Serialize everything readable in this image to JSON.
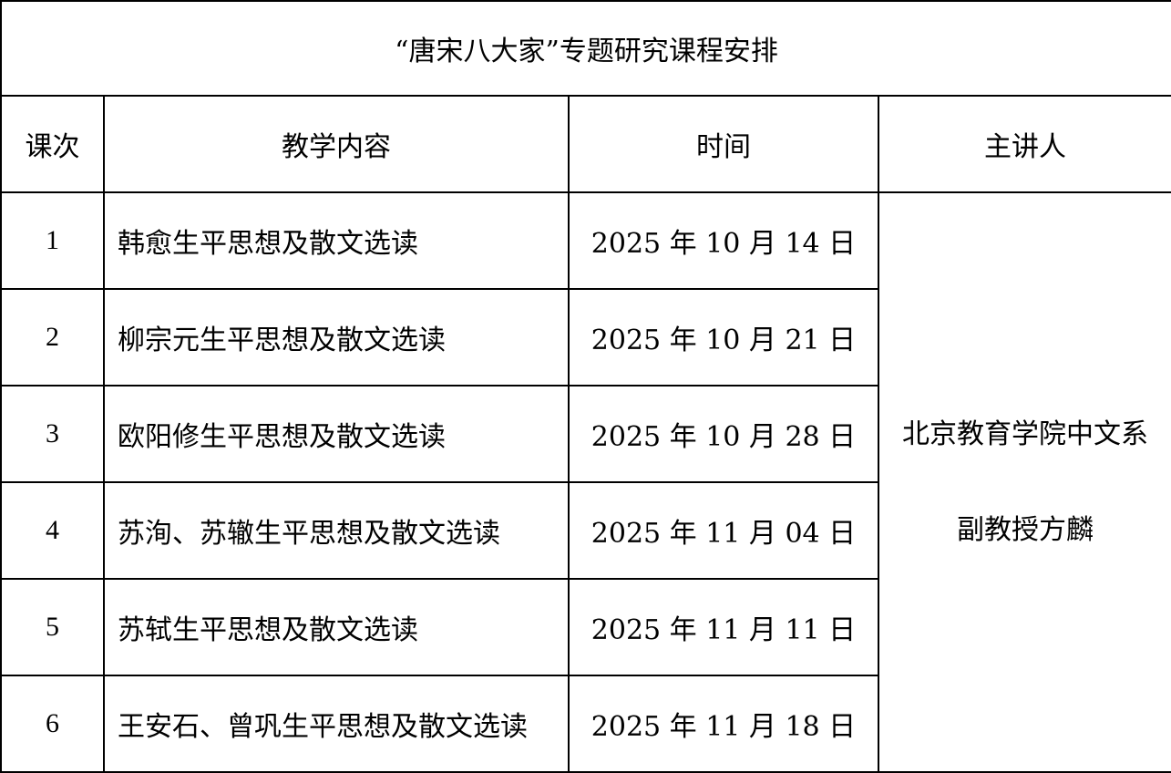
{
  "title": "“唐宋八大家”专题研究课程安排",
  "headers": [
    "课次",
    "教学内容",
    "时间",
    "主讲人"
  ],
  "rows": [
    {
      "index": "1",
      "content": "韩愈生平思想及散文选读",
      "date": "2025 年 10 月 14 日"
    },
    {
      "index": "2",
      "content": "柳宗元生平思想及散文选读",
      "date": "2025 年 10 月 21 日"
    },
    {
      "index": "3",
      "content": "欧阳修生平思想及散文选读",
      "date": "2025 年 10 月 28 日"
    },
    {
      "index": "4",
      "content": "苏洵、苏辙生平思想及散文选读",
      "date": "2025 年 11 月 04 日"
    },
    {
      "index": "5",
      "content": "苏轼生平思想及散文选读",
      "date": "2025 年 11 月 11 日"
    },
    {
      "index": "6",
      "content": "王安石、曾巩生平思想及散文选读",
      "date": "2025 年 11 月 18 日"
    }
  ],
  "lecturer": {
    "affiliation": "北京教育学院中文系",
    "title_name": "副教授方麟"
  }
}
